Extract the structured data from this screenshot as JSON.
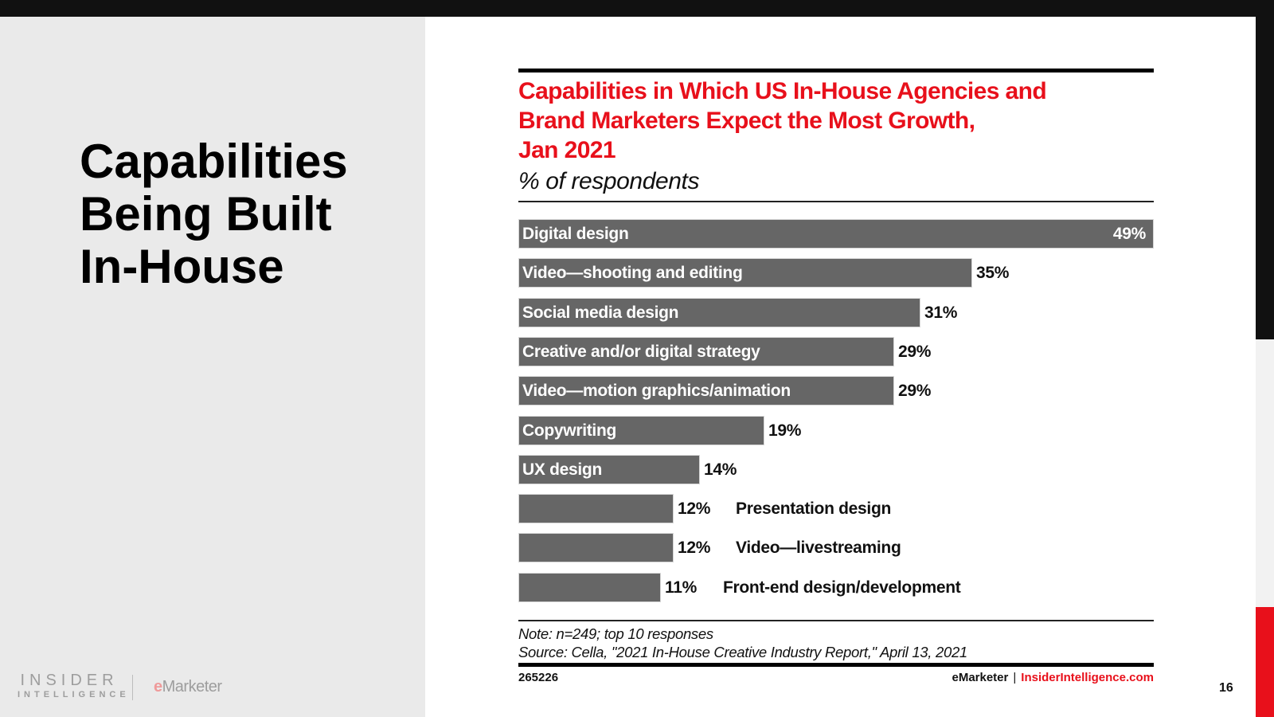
{
  "slide": {
    "title_lines": [
      "Capabilities",
      "Being Built",
      "In-House"
    ],
    "page_number": "16"
  },
  "logos": {
    "insider_line1": "INSIDER",
    "insider_line2": "INTELLIGENCE",
    "emarketer_e": "e",
    "emarketer_rest": "Marketer"
  },
  "colors": {
    "accent_red": "#e8101b",
    "bar_gray": "#666666",
    "panel_gray": "#eaeaea"
  },
  "chart_data": {
    "type": "bar",
    "orientation": "horizontal",
    "title": "Capabilities in Which US In-House Agencies and Brand Marketers Expect the Most Growth, Jan 2021",
    "title_lines": [
      "Capabilities in Which US In-House Agencies and",
      "Brand Marketers Expect the Most Growth,",
      "Jan 2021"
    ],
    "subtitle": "% of respondents",
    "xlabel": "",
    "ylabel": "",
    "xlim": [
      0,
      49
    ],
    "grid": false,
    "legend": "none",
    "categories": [
      "Digital design",
      "Video—shooting and editing",
      "Social media design",
      "Creative and/or digital strategy",
      "Video—motion graphics/animation",
      "Copywriting",
      "UX design",
      "Presentation design",
      "Video—livestreaming",
      "Front-end design/development"
    ],
    "values": [
      49,
      35,
      31,
      29,
      29,
      19,
      14,
      12,
      12,
      11
    ],
    "value_labels": [
      "49%",
      "35%",
      "31%",
      "29%",
      "29%",
      "19%",
      "14%",
      "12%",
      "12%",
      "11%"
    ],
    "label_outside": [
      false,
      false,
      false,
      false,
      false,
      false,
      false,
      true,
      true,
      true
    ],
    "note": "Note: n=249; top 10 responses",
    "source": "Source: Cella, \"2021 In-House Creative Industry Report,\" April 13, 2021",
    "chart_id": "265226",
    "credit_brand": "eMarketer",
    "credit_separator": "|",
    "credit_site": "InsiderIntelligence.com"
  }
}
